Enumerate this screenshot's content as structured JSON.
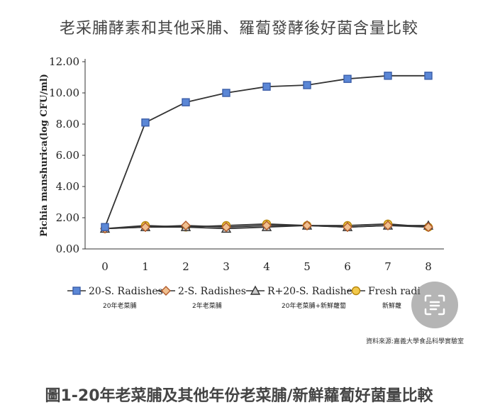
{
  "title": "老采脯酵素和其他采脯、羅蔔發酵後好菌含量比較",
  "source_note": "資料來源:嘉義大學食品科學實驗室",
  "caption": "圖1-20年老菜脯及其他年份老菜脯/新鮮蘿蔔好菌量比較",
  "chart_data": {
    "type": "line",
    "ylabel": "Pichia manshurica(log CFU/ml)",
    "xlabel": "",
    "x": [
      0,
      1,
      2,
      3,
      4,
      5,
      6,
      7,
      8
    ],
    "x_tick_labels": [
      "0",
      "1",
      "2",
      "3",
      "4",
      "5",
      "6",
      "7",
      "8"
    ],
    "ylim": [
      0,
      12
    ],
    "y_tick_labels": [
      "0.00",
      "2.00",
      "4.00",
      "6.00",
      "8.00",
      "10.00",
      "12.00"
    ],
    "grid": false,
    "legend_position": "bottom",
    "series": [
      {
        "name": "20-S. Radishes",
        "subtitle": "20年老菜脯",
        "marker": "square",
        "color": "#3a5da8",
        "fill": "#5b87d6",
        "values": [
          1.4,
          8.1,
          9.4,
          10.0,
          10.4,
          10.5,
          10.9,
          11.1,
          11.1
        ]
      },
      {
        "name": "2-S. Radishes",
        "subtitle": "2年老菜脯",
        "marker": "diamond",
        "color": "#b25a2a",
        "fill": "#f0c090",
        "values": [
          1.3,
          1.4,
          1.5,
          1.4,
          1.5,
          1.5,
          1.4,
          1.5,
          1.4
        ]
      },
      {
        "name": "R+20-S. Radishes",
        "subtitle": "20年老菜脯+新鮮蘿蔔",
        "marker": "triangle",
        "color": "#333333",
        "fill": "#cccccc",
        "values": [
          1.3,
          1.4,
          1.4,
          1.3,
          1.4,
          1.5,
          1.4,
          1.5,
          1.5
        ]
      },
      {
        "name": "Fresh radi",
        "subtitle": "新鮮蘿",
        "marker": "circle",
        "color": "#b8860b",
        "fill": "#f2c94c",
        "values": [
          1.3,
          1.5,
          1.4,
          1.5,
          1.6,
          1.5,
          1.5,
          1.6,
          1.4
        ]
      }
    ]
  }
}
